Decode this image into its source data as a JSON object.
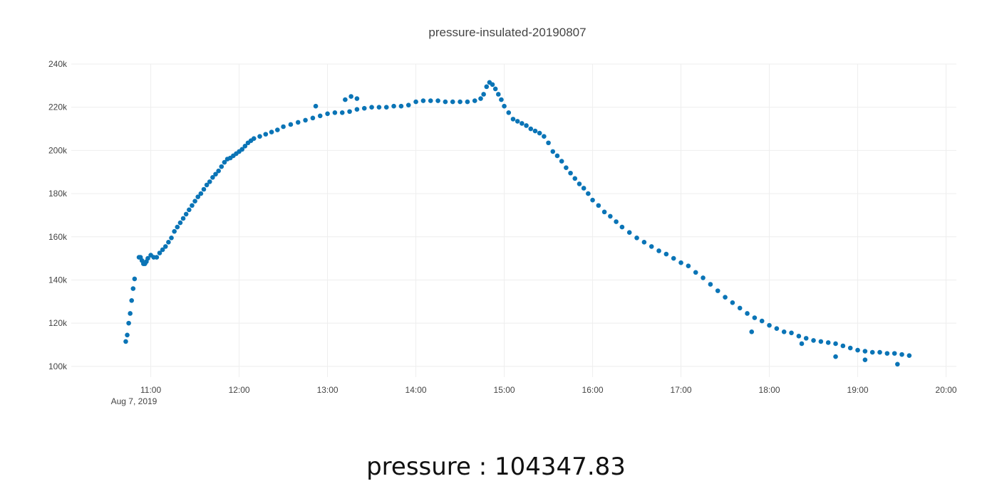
{
  "chart_data": {
    "type": "scatter",
    "title": "pressure-insulated-20190807",
    "xlabel": "",
    "ylabel": "",
    "x_start_label": "Aug 7, 2019",
    "xlim": [
      "2019-08-07 10:06",
      "2019-08-07 20:07"
    ],
    "ylim": [
      95000,
      240000
    ],
    "x_ticks": [
      "11:00",
      "12:00",
      "13:00",
      "14:00",
      "15:00",
      "16:00",
      "17:00",
      "18:00",
      "19:00",
      "20:00"
    ],
    "y_ticks": [
      {
        "value": 100000,
        "label": "100k"
      },
      {
        "value": 120000,
        "label": "120k"
      },
      {
        "value": 140000,
        "label": "140k"
      },
      {
        "value": 160000,
        "label": "160k"
      },
      {
        "value": 180000,
        "label": "180k"
      },
      {
        "value": 200000,
        "label": "200k"
      },
      {
        "value": 220000,
        "label": "220k"
      },
      {
        "value": 240000,
        "label": "240k"
      }
    ],
    "grid": true,
    "legend": "none",
    "marker_color": "#0a74b6",
    "series": [
      {
        "x": [
          "10:43",
          "10:44",
          "10:45",
          "10:46",
          "10:47",
          "10:48",
          "10:49",
          "10:52",
          "10:53",
          "10:54",
          "10:55",
          "10:56",
          "10:57",
          "10:58",
          "11:00",
          "11:02",
          "11:04",
          "11:06",
          "11:08",
          "11:10",
          "11:12",
          "11:14",
          "11:16",
          "11:18",
          "11:20",
          "11:22",
          "11:24",
          "11:26",
          "11:28",
          "11:30",
          "11:32",
          "11:34",
          "11:36",
          "11:38",
          "11:40",
          "11:42",
          "11:44",
          "11:46",
          "11:48",
          "11:50",
          "11:52",
          "11:54",
          "11:56",
          "11:58",
          "12:00",
          "12:02",
          "12:04",
          "12:06",
          "12:08",
          "12:10",
          "12:14",
          "12:18",
          "12:22",
          "12:26",
          "12:30",
          "12:35",
          "12:40",
          "12:45",
          "12:50",
          "12:55",
          "13:00",
          "13:05",
          "13:10",
          "13:15",
          "13:20",
          "13:25",
          "13:30",
          "13:35",
          "13:40",
          "13:45",
          "13:50",
          "13:55",
          "14:00",
          "14:05",
          "14:10",
          "14:15",
          "14:20",
          "14:25",
          "14:30",
          "14:35",
          "14:40",
          "14:44",
          "14:46",
          "14:48",
          "14:50",
          "14:52",
          "14:54",
          "14:56",
          "14:58",
          "15:00",
          "15:03",
          "15:06",
          "15:09",
          "15:12",
          "15:15",
          "15:18",
          "15:21",
          "15:24",
          "15:27",
          "15:30",
          "15:33",
          "15:36",
          "15:39",
          "15:42",
          "15:45",
          "15:48",
          "15:51",
          "15:54",
          "15:57",
          "16:00",
          "16:04",
          "16:08",
          "16:12",
          "16:16",
          "16:20",
          "16:25",
          "16:30",
          "16:35",
          "16:40",
          "16:45",
          "16:50",
          "16:55",
          "17:00",
          "17:05",
          "17:10",
          "17:15",
          "17:20",
          "17:25",
          "17:30",
          "17:35",
          "17:40",
          "17:45",
          "17:50",
          "17:55",
          "18:00",
          "18:05",
          "18:10",
          "18:15",
          "18:20",
          "18:25",
          "18:30",
          "18:35",
          "18:40",
          "18:45",
          "18:50",
          "18:55",
          "19:00",
          "19:05",
          "19:10",
          "19:15",
          "19:20",
          "19:25",
          "19:30",
          "19:35",
          "12:52",
          "13:12",
          "13:16",
          "13:20",
          "17:48",
          "18:22",
          "18:45",
          "19:05",
          "19:27"
        ],
        "y": [
          111500,
          114500,
          120000,
          124500,
          130500,
          136000,
          140500,
          150500,
          150500,
          149000,
          147500,
          147500,
          148500,
          150000,
          151500,
          150500,
          150500,
          152500,
          154000,
          155500,
          157500,
          159500,
          162500,
          164500,
          166500,
          168500,
          170500,
          172500,
          174500,
          176500,
          178500,
          180000,
          182000,
          184000,
          185500,
          187500,
          189000,
          190500,
          192500,
          194500,
          196000,
          196500,
          197500,
          198500,
          199500,
          200500,
          202000,
          203500,
          204500,
          205500,
          206500,
          207500,
          208500,
          209500,
          211000,
          212000,
          213000,
          214000,
          215000,
          216000,
          217000,
          217500,
          217500,
          218000,
          219000,
          219500,
          220000,
          220000,
          220000,
          220500,
          220500,
          221000,
          222500,
          223000,
          223000,
          223000,
          222500,
          222500,
          222500,
          222500,
          223000,
          224000,
          226000,
          229500,
          231500,
          230500,
          228500,
          226000,
          223500,
          220500,
          217500,
          214500,
          213500,
          212500,
          211500,
          210000,
          209000,
          208000,
          206500,
          203500,
          199500,
          197500,
          195000,
          192000,
          189500,
          187000,
          184500,
          182500,
          180000,
          177000,
          174500,
          171500,
          169500,
          167000,
          164500,
          162000,
          159500,
          157500,
          155500,
          153500,
          152000,
          150000,
          148000,
          146500,
          143500,
          141000,
          138000,
          135000,
          132000,
          129500,
          127000,
          124500,
          122500,
          121000,
          119000,
          117500,
          116000,
          115500,
          114000,
          113000,
          112000,
          111500,
          111000,
          110500,
          109500,
          108500,
          107500,
          107000,
          106500,
          106500,
          106000,
          106000,
          105500,
          105000,
          220500,
          223500,
          225000,
          224000,
          116000,
          110500,
          104500,
          103000,
          101000
        ]
      }
    ]
  },
  "readout": {
    "label": "pressure : 104347.83"
  }
}
